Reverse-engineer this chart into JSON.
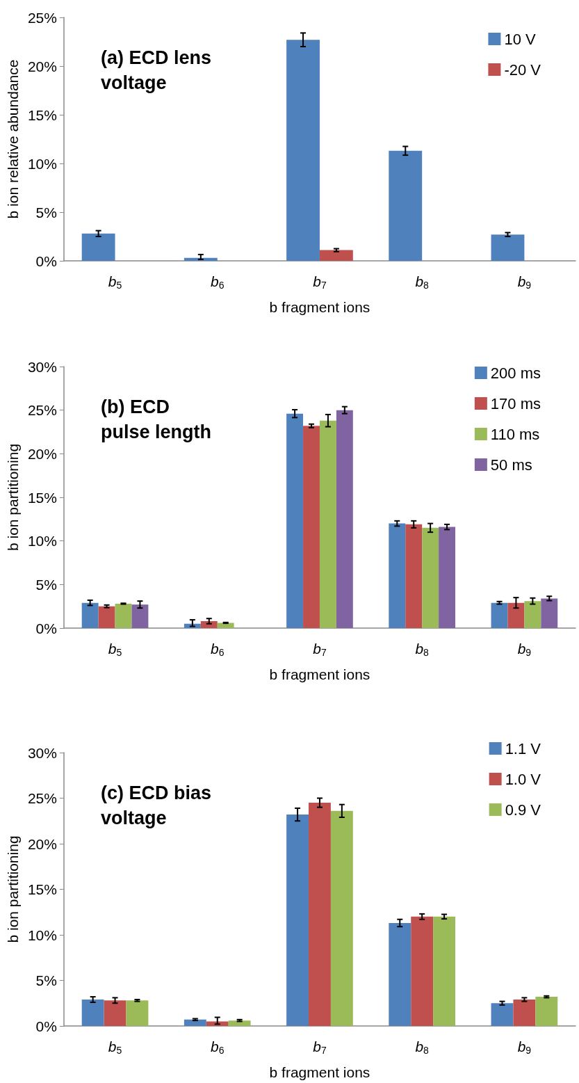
{
  "chart_data": [
    {
      "type": "bar",
      "title": "(a) ECD lens voltage",
      "xlabel": "b fragment ions",
      "ylabel": "b ion relative abundance",
      "categories": [
        "b$_{5}$",
        "b$_{6}$",
        "b$_{7}$",
        "b$_{8}$",
        "b$_{9}$"
      ],
      "series": [
        {
          "name": "10 V",
          "color": "#4f81bd",
          "values": [
            2.8,
            0.3,
            22.7,
            11.3,
            2.7
          ],
          "errors": [
            0.3,
            [
              0.15,
              0.65
            ],
            0.7,
            0.45,
            0.2
          ]
        },
        {
          "name": "-20 V",
          "color": "#c0504d",
          "values": [
            0,
            0,
            1.1,
            0,
            0
          ],
          "errors": [
            null,
            null,
            0.15,
            null,
            null
          ]
        }
      ],
      "ylim": [
        0,
        25
      ],
      "yticks": [
        {
          "value": 0,
          "label": "0%"
        },
        {
          "value": 5,
          "label": "5%"
        },
        {
          "value": 10,
          "label": "10%"
        },
        {
          "value": 15,
          "label": "15%"
        },
        {
          "value": 20,
          "label": "20%"
        },
        {
          "value": 25,
          "label": "25%"
        }
      ],
      "grid": false,
      "legend": "top right"
    },
    {
      "type": "bar",
      "title": "(b) ECD pulse length",
      "xlabel": "b fragment ions",
      "ylabel": "b ion partitioning",
      "categories": [
        "b$_{5}$",
        "b$_{6}$",
        "b$_{7}$",
        "b$_{8}$",
        "b$_{9}$"
      ],
      "series": [
        {
          "name": "200 ms",
          "color": "#4f81bd",
          "values": [
            2.9,
            0.5,
            24.6,
            12.0,
            2.9
          ],
          "errors": [
            0.3,
            [
              0.2,
              0.95
            ],
            0.45,
            0.3,
            0.15
          ]
        },
        {
          "name": "170 ms",
          "color": "#c0504d",
          "values": [
            2.5,
            0.8,
            23.2,
            11.9,
            2.9
          ],
          "errors": [
            0.15,
            0.3,
            0.2,
            0.4,
            0.6
          ]
        },
        {
          "name": "110 ms",
          "color": "#9bbb59",
          "values": [
            2.8,
            0.6,
            23.8,
            11.5,
            3.1
          ],
          "errors": [
            0.05,
            0.05,
            0.7,
            0.5,
            0.35
          ]
        },
        {
          "name": "50 ms",
          "color": "#8064a2",
          "values": [
            2.7,
            0,
            25.0,
            11.6,
            3.4
          ],
          "errors": [
            0.4,
            null,
            0.4,
            0.3,
            0.25
          ]
        }
      ],
      "ylim": [
        0,
        30
      ],
      "yticks": [
        {
          "value": 0,
          "label": "0%"
        },
        {
          "value": 5,
          "label": "5%"
        },
        {
          "value": 10,
          "label": "10%"
        },
        {
          "value": 15,
          "label": "15%"
        },
        {
          "value": 20,
          "label": "20%"
        },
        {
          "value": 25,
          "label": "25%"
        },
        {
          "value": 30,
          "label": "30%"
        }
      ],
      "grid": false,
      "legend": "top right"
    },
    {
      "type": "bar",
      "title": "(c) ECD bias voltage",
      "xlabel": "b fragment ions",
      "ylabel": "b ion partitioning",
      "categories": [
        "b$_{5}$",
        "b$_{6}$",
        "b$_{7}$",
        "b$_{8}$",
        "b$_{9}$"
      ],
      "series": [
        {
          "name": "1.1 V",
          "color": "#4f81bd",
          "values": [
            2.9,
            0.7,
            23.2,
            11.3,
            2.5
          ],
          "errors": [
            0.3,
            0.1,
            0.7,
            0.4,
            0.2
          ]
        },
        {
          "name": "1.0 V",
          "color": "#c0504d",
          "values": [
            2.8,
            0.5,
            24.5,
            12.0,
            2.9
          ],
          "errors": [
            0.3,
            [
              0.2,
              0.95
            ],
            0.5,
            0.3,
            0.2
          ]
        },
        {
          "name": "0.9 V",
          "color": "#9bbb59",
          "values": [
            2.8,
            0.6,
            23.6,
            12.0,
            3.2
          ],
          "errors": [
            0.1,
            0.1,
            0.7,
            0.25,
            0.1
          ]
        }
      ],
      "ylim": [
        0,
        30
      ],
      "yticks": [
        {
          "value": 0,
          "label": "0%"
        },
        {
          "value": 5,
          "label": "5%"
        },
        {
          "value": 10,
          "label": "10%"
        },
        {
          "value": 15,
          "label": "15%"
        },
        {
          "value": 20,
          "label": "20%"
        },
        {
          "value": 25,
          "label": "25%"
        },
        {
          "value": 30,
          "label": "30%"
        }
      ],
      "grid": false,
      "legend": "top right"
    }
  ]
}
